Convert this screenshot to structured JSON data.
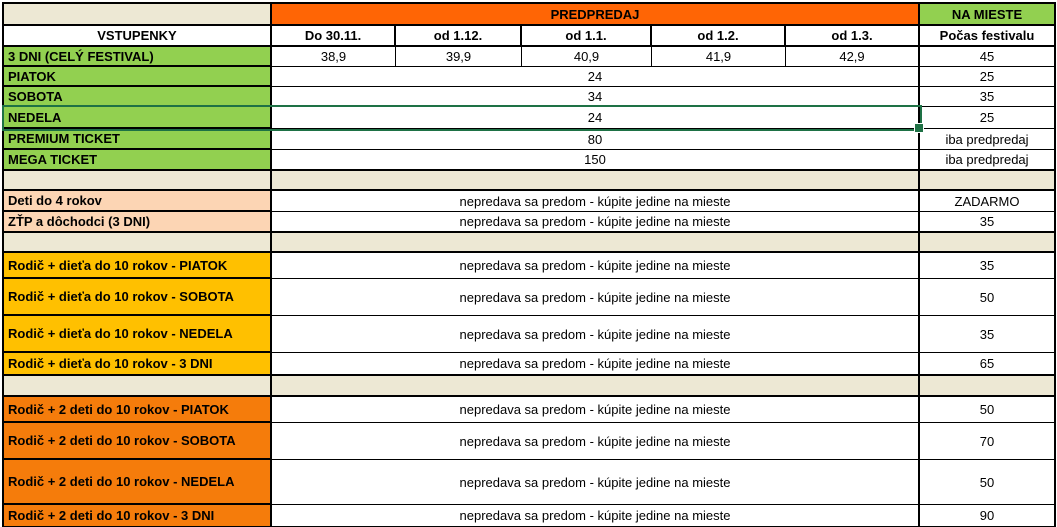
{
  "colors": {
    "header_orange": "#FF6505",
    "section_orange": "#F57C0B",
    "green": "#92D050",
    "gold": "#FFC000",
    "peach": "#FCD5B4",
    "beige": "#EDE8D4",
    "selection_green": "#1E7145",
    "gridline": "#000000"
  },
  "header": {
    "presale_label": "PREDPREDAJ",
    "onsite_label": "NA MIESTE",
    "tickets_label": "VSTUPENKY",
    "date_columns": [
      "Do 30.11.",
      "od 1.12.",
      "od 1.1.",
      "od 1.2.",
      "od 1.3."
    ],
    "onsite_column": "Počas festivalu"
  },
  "note": "nepredava sa predom - kúpite jedine na mieste",
  "main_section": {
    "rows": [
      {
        "label": "3 DNI (CELÝ FESTIVAL)",
        "prices": [
          "38,9",
          "39,9",
          "40,9",
          "41,9",
          "42,9"
        ],
        "onsite": "45"
      },
      {
        "label": "PIATOK",
        "price": "24",
        "onsite": "25"
      },
      {
        "label": "SOBOTA",
        "price": "34",
        "onsite": "35"
      },
      {
        "label": "NEDELA",
        "price": "24",
        "onsite": "25",
        "selected": true
      },
      {
        "label": "PREMIUM TICKET",
        "price": "80",
        "onsite": "iba predpredaj"
      },
      {
        "label": "MEGA TICKET",
        "price": "150",
        "onsite": "iba predpredaj"
      }
    ]
  },
  "discount_section": {
    "rows": [
      {
        "label": "Deti do 4 rokov",
        "onsite": "ZADARMO"
      },
      {
        "label": "ZŤP a dôchodci (3 DNI)",
        "onsite": "35"
      }
    ]
  },
  "family_one_child_section": {
    "rows": [
      {
        "label": "Rodič + dieťa do 10 rokov - PIATOK",
        "onsite": "35"
      },
      {
        "label": "Rodič + dieťa do 10 rokov - SOBOTA",
        "onsite": "50"
      },
      {
        "label": "Rodič + dieťa do 10 rokov - NEDELA",
        "onsite": "35"
      },
      {
        "label": "Rodič + dieťa do 10 rokov - 3 DNI",
        "onsite": "65"
      }
    ]
  },
  "family_two_children_section": {
    "rows": [
      {
        "label": "Rodič + 2 deti do 10 rokov - PIATOK",
        "onsite": "50"
      },
      {
        "label": "Rodič + 2 deti do 10 rokov - SOBOTA",
        "onsite": "70"
      },
      {
        "label": "Rodič + 2 deti do 10 rokov - NEDELA",
        "onsite": "50"
      },
      {
        "label": "Rodič + 2 deti do 10 rokov - 3 DNI",
        "onsite": "90"
      }
    ]
  }
}
